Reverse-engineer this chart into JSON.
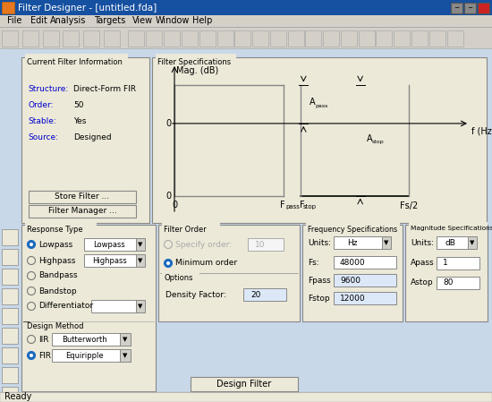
{
  "title": "Filter Designer - [untitled.fda]",
  "menu_items": [
    "File",
    "Edit",
    "Analysis",
    "Targets",
    "View",
    "Window",
    "Help"
  ],
  "info_labels": [
    "Structure:",
    "Order:",
    "Stable:",
    "Source:"
  ],
  "info_values": [
    "Direct-Form FIR",
    "50",
    "Yes",
    "Designed"
  ],
  "response_types": [
    "Lowpass",
    "Highpass",
    "Bandpass",
    "Bandstop",
    "Differentiator"
  ],
  "fs_val": "48000",
  "fpass_val": "9600",
  "fstop_val": "12000",
  "apass_val": "1",
  "astop_val": "80",
  "density_val": "20",
  "order_val": "10",
  "bg_window": "#d4d0c8",
  "bg_content": "#c8d8e8",
  "bg_panel": "#ece9d8",
  "bg_panel2": "#f0f0f0",
  "blue_label": "#0000cc",
  "title_blue1": "#1650a0",
  "title_blue2": "#0a246a",
  "highlight_blue": "#dce8f8"
}
